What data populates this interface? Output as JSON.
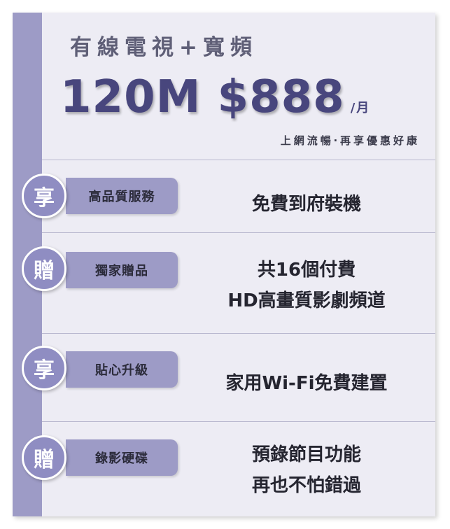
{
  "header": {
    "title": "有線電視+寬頻",
    "price": "120M $888",
    "per_unit": "/月",
    "tagline": "上網流暢‧再享優惠好康"
  },
  "features": [
    {
      "badge": "享",
      "label": "高品質服務",
      "lines": [
        "免費到府裝機"
      ]
    },
    {
      "badge": "贈",
      "label": "獨家贈品",
      "lines": [
        "共16個付費",
        "HD高畫質影劇頻道"
      ]
    },
    {
      "badge": "享",
      "label": "貼心升級",
      "lines": [
        "家用Wi-Fi免費建置"
      ]
    },
    {
      "badge": "贈",
      "label": "錄影硬碟",
      "lines": [
        "預錄節目功能",
        "再也不怕錯過"
      ]
    }
  ]
}
